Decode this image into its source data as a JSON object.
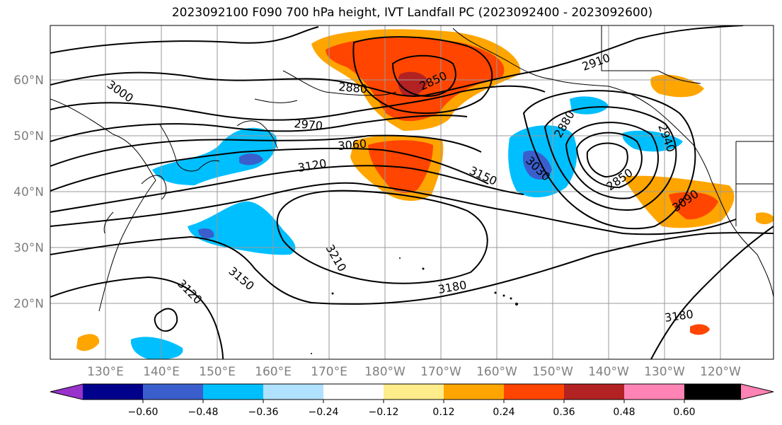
{
  "title": "2023092100 F090 700 hPa height, IVT Landfall PC (2023092400 - 2023092600)",
  "lat_labels": [
    "60°N",
    "50°N",
    "40°N",
    "30°N",
    "20°N"
  ],
  "lon_labels": [
    "130°E",
    "140°E",
    "150°E",
    "160°E",
    "170°E",
    "180°W",
    "170°W",
    "160°W",
    "150°W",
    "140°W",
    "130°W",
    "120°W"
  ],
  "contour_labels": [
    "3000",
    "2880",
    "2850",
    "2910",
    "2970",
    "3060",
    "3120",
    "3150",
    "2880",
    "2940",
    "3030",
    "2850",
    "3090",
    "3210",
    "3180",
    "3150",
    "3120",
    "3180"
  ],
  "colorbar": {
    "colors": [
      "#9932cc",
      "#00008b",
      "#3a5fcd",
      "#00bfff",
      "#b0e2ff",
      "#ffffff",
      "#ffec8b",
      "#ffa500",
      "#ff4500",
      "#b22222",
      "#ff83b4"
    ],
    "ticks": [
      "−0.60",
      "−0.48",
      "−0.36",
      "−0.24",
      "−0.12",
      "0.12",
      "0.24",
      "0.36",
      "0.48",
      "0.60"
    ]
  }
}
